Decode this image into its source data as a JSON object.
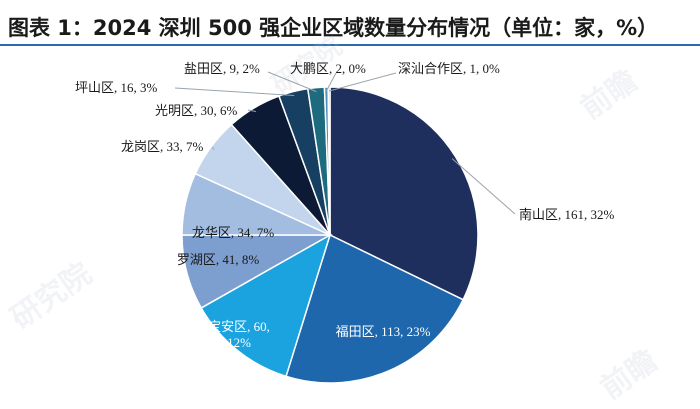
{
  "chart_data": {
    "type": "pie",
    "title": "图表 1：2024 深圳 500 强企业区域数量分布情况（单位：家，%）",
    "slices": [
      {
        "name": "南山区",
        "value": 161,
        "pct": "32%",
        "color": "#1e2f5e",
        "label": "南山区, 161, 32%"
      },
      {
        "name": "福田区",
        "value": 113,
        "pct": "23%",
        "color": "#1f67ad",
        "label": "福田区, 113, 23%"
      },
      {
        "name": "宝安区",
        "value": 60,
        "pct": "12%",
        "color": "#1aa3df",
        "label": "宝安区, 60, 12%",
        "label_lines": [
          "宝安区, 60,",
          "12%"
        ]
      },
      {
        "name": "罗湖区",
        "value": 41,
        "pct": "8%",
        "color": "#7d9fcf",
        "label": "罗湖区, 41, 8%"
      },
      {
        "name": "龙华区",
        "value": 34,
        "pct": "7%",
        "color": "#a2bde0",
        "label": "龙华区, 34, 7%"
      },
      {
        "name": "龙岗区",
        "value": 33,
        "pct": "7%",
        "color": "#c2d5ec",
        "label": "龙岗区, 33, 7%"
      },
      {
        "name": "光明区",
        "value": 30,
        "pct": "6%",
        "color": "#0c1a36",
        "label": "光明区, 30, 6%"
      },
      {
        "name": "坪山区",
        "value": 16,
        "pct": "3%",
        "color": "#163f62",
        "label": "坪山区, 16, 3%"
      },
      {
        "name": "盐田区",
        "value": 9,
        "pct": "2%",
        "color": "#1e6a7e",
        "label": "盐田区, 9, 2%"
      },
      {
        "name": "大鹏区",
        "value": 2,
        "pct": "0%",
        "color": "#4e8fc0",
        "label": "大鹏区, 2, 0%"
      },
      {
        "name": "深汕合作区",
        "value": 1,
        "pct": "0%",
        "color": "#9bb7d8",
        "label": "深汕合作区, 1, 0%"
      }
    ]
  },
  "watermark": {
    "text1": "前瞻",
    "text2": "研究院"
  }
}
